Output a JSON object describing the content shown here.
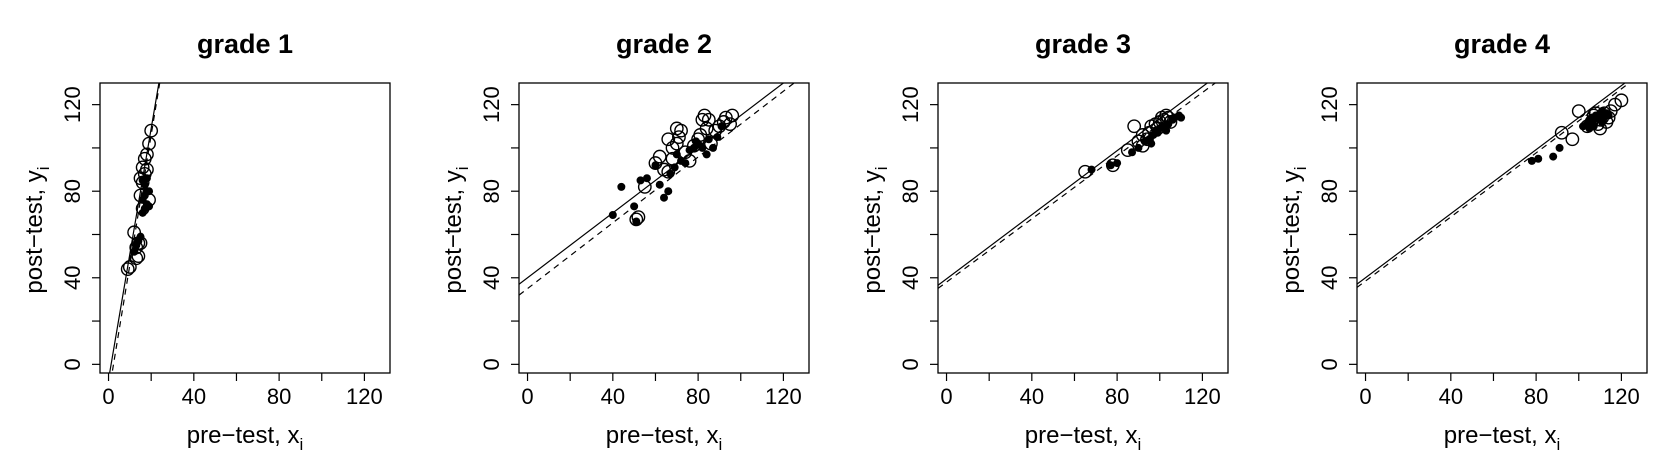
{
  "chart_data": [
    {
      "type": "scatter",
      "title": "grade 1",
      "xlabel": "pre−test, x",
      "xlabel_sub": "i",
      "ylabel": "post−test, y",
      "ylabel_sub": "i",
      "xlim": [
        -4,
        132
      ],
      "ylim": [
        -4,
        130
      ],
      "xticks": [
        "0",
        "40",
        "80",
        "120"
      ],
      "yticks": [
        "0",
        "40",
        "80",
        "120"
      ],
      "lines": [
        {
          "style": "solid",
          "intercept": -7,
          "slope": 5.8
        },
        {
          "style": "dashed",
          "intercept": -14,
          "slope": 6.0
        }
      ],
      "series": [
        {
          "marker": "open",
          "points": [
            [
              9,
              44
            ],
            [
              10,
              45
            ],
            [
              12,
              61
            ],
            [
              13,
              49
            ],
            [
              14,
              50
            ],
            [
              13,
              54
            ],
            [
              14,
              56
            ],
            [
              15,
              78
            ],
            [
              16,
              84
            ],
            [
              15,
              86
            ],
            [
              17,
              88
            ],
            [
              16,
              91
            ],
            [
              17,
              95
            ],
            [
              18,
              97
            ],
            [
              19,
              102
            ],
            [
              20,
              108
            ],
            [
              18,
              90
            ],
            [
              16,
              72
            ],
            [
              19,
              76
            ],
            [
              15,
              56
            ]
          ]
        },
        {
          "marker": "filled",
          "points": [
            [
              12,
              52
            ],
            [
              13,
              55
            ],
            [
              14,
              57
            ],
            [
              15,
              59
            ],
            [
              16,
              70
            ],
            [
              17,
              72
            ],
            [
              18,
              74
            ],
            [
              16,
              76
            ],
            [
              17,
              78
            ],
            [
              18,
              80
            ],
            [
              19,
              80
            ],
            [
              17,
              83
            ],
            [
              16,
              85
            ],
            [
              18,
              86
            ],
            [
              19,
              73
            ]
          ]
        }
      ]
    },
    {
      "type": "scatter",
      "title": "grade 2",
      "xlabel": "pre−test, x",
      "xlabel_sub": "i",
      "ylabel": "post−test, y",
      "ylabel_sub": "i",
      "xlim": [
        -4,
        132
      ],
      "ylim": [
        -4,
        130
      ],
      "xticks": [
        "0",
        "40",
        "80",
        "120"
      ],
      "yticks": [
        "0",
        "40",
        "80",
        "120"
      ],
      "lines": [
        {
          "style": "solid",
          "intercept": 40,
          "slope": 0.75
        },
        {
          "style": "dashed",
          "intercept": 35,
          "slope": 0.76
        }
      ],
      "series": [
        {
          "marker": "open",
          "points": [
            [
              51,
              67
            ],
            [
              52,
              68
            ],
            [
              55,
              82
            ],
            [
              60,
              93
            ],
            [
              62,
              96
            ],
            [
              64,
              90
            ],
            [
              66,
              89
            ],
            [
              68,
              95
            ],
            [
              68,
              100
            ],
            [
              70,
              102
            ],
            [
              70,
              109
            ],
            [
              71,
              105
            ],
            [
              72,
              108
            ],
            [
              74,
              98
            ],
            [
              76,
              94
            ],
            [
              78,
              101
            ],
            [
              80,
              104
            ],
            [
              81,
              106
            ],
            [
              82,
              113
            ],
            [
              83,
              115
            ],
            [
              85,
              113
            ],
            [
              84,
              109
            ],
            [
              86,
              102
            ],
            [
              90,
              110
            ],
            [
              92,
              112
            ],
            [
              93,
              114
            ],
            [
              95,
              111
            ],
            [
              96,
              115
            ],
            [
              88,
              108
            ],
            [
              66,
              104
            ]
          ]
        },
        {
          "marker": "filled",
          "points": [
            [
              40,
              69
            ],
            [
              44,
              82
            ],
            [
              50,
              73
            ],
            [
              51,
              66
            ],
            [
              53,
              85
            ],
            [
              56,
              86
            ],
            [
              60,
              92
            ],
            [
              62,
              83
            ],
            [
              64,
              77
            ],
            [
              66,
              80
            ],
            [
              67,
              88
            ],
            [
              69,
              91
            ],
            [
              72,
              94
            ],
            [
              74,
              93
            ],
            [
              76,
              99
            ],
            [
              78,
              100
            ],
            [
              79,
              103
            ],
            [
              82,
              100
            ],
            [
              84,
              97
            ],
            [
              85,
              104
            ],
            [
              87,
              100
            ],
            [
              89,
              105
            ],
            [
              91,
              110
            ],
            [
              70,
              97
            ],
            [
              80,
              102
            ]
          ]
        }
      ]
    },
    {
      "type": "scatter",
      "title": "grade 3",
      "xlabel": "pre−test, x",
      "xlabel_sub": "i",
      "ylabel": "post−test, y",
      "ylabel_sub": "i",
      "xlim": [
        -4,
        132
      ],
      "ylim": [
        -4,
        130
      ],
      "xticks": [
        "0",
        "40",
        "80",
        "120"
      ],
      "yticks": [
        "0",
        "40",
        "80",
        "120"
      ],
      "lines": [
        {
          "style": "solid",
          "intercept": 39.5,
          "slope": 0.74
        },
        {
          "style": "dashed",
          "intercept": 38,
          "slope": 0.73
        }
      ],
      "series": [
        {
          "marker": "open",
          "points": [
            [
              65,
              89
            ],
            [
              78,
              92
            ],
            [
              85,
              99
            ],
            [
              88,
              110
            ],
            [
              90,
              103
            ],
            [
              92,
              106
            ],
            [
              94,
              104
            ],
            [
              95,
              107
            ],
            [
              96,
              110
            ],
            [
              98,
              111
            ],
            [
              100,
              112
            ],
            [
              101,
              114
            ],
            [
              102,
              113
            ],
            [
              103,
              115
            ],
            [
              104,
              114
            ],
            [
              105,
              112
            ],
            [
              99,
              109
            ],
            [
              92,
              101
            ]
          ]
        },
        {
          "marker": "filled",
          "points": [
            [
              68,
              90
            ],
            [
              77,
              92
            ],
            [
              80,
              93
            ],
            [
              87,
              98
            ],
            [
              90,
              100
            ],
            [
              93,
              103
            ],
            [
              95,
              104
            ],
            [
              97,
              106
            ],
            [
              98,
              108
            ],
            [
              99,
              107
            ],
            [
              100,
              109
            ],
            [
              102,
              110
            ],
            [
              103,
              108
            ],
            [
              104,
              111
            ],
            [
              106,
              113
            ],
            [
              107,
              114
            ],
            [
              109,
              115
            ],
            [
              110,
              114
            ],
            [
              96,
              102
            ]
          ]
        }
      ]
    },
    {
      "type": "scatter",
      "title": "grade 4",
      "xlabel": "pre−test, x",
      "xlabel_sub": "i",
      "ylabel": "post−test, y",
      "ylabel_sub": "i",
      "xlim": [
        -4,
        132
      ],
      "ylim": [
        -4,
        130
      ],
      "xticks": [
        "0",
        "40",
        "80",
        "120"
      ],
      "yticks": [
        "0",
        "40",
        "80",
        "120"
      ],
      "lines": [
        {
          "style": "solid",
          "intercept": 40,
          "slope": 0.74
        },
        {
          "style": "dashed",
          "intercept": 38.5,
          "slope": 0.74
        }
      ],
      "series": [
        {
          "marker": "open",
          "points": [
            [
              92,
              107
            ],
            [
              97,
              104
            ],
            [
              100,
              117
            ],
            [
              104,
              110
            ],
            [
              106,
              112
            ],
            [
              107,
              115
            ],
            [
              108,
              116
            ],
            [
              109,
              111
            ],
            [
              110,
              113
            ],
            [
              111,
              114
            ],
            [
              112,
              116
            ],
            [
              113,
              112
            ],
            [
              114,
              114
            ],
            [
              115,
              117
            ],
            [
              117,
              120
            ],
            [
              120,
              122
            ],
            [
              110,
              109
            ],
            [
              108,
              113
            ]
          ]
        },
        {
          "marker": "filled",
          "points": [
            [
              78,
              94
            ],
            [
              81,
              95
            ],
            [
              88,
              96
            ],
            [
              91,
              100
            ],
            [
              102,
              110
            ],
            [
              104,
              111
            ],
            [
              105,
              113
            ],
            [
              106,
              114
            ],
            [
              107,
              113
            ],
            [
              108,
              115
            ],
            [
              109,
              114
            ],
            [
              110,
              116
            ],
            [
              111,
              117
            ],
            [
              112,
              115
            ],
            [
              113,
              116
            ],
            [
              114,
              115
            ],
            [
              107,
              110
            ],
            [
              105,
              109
            ],
            [
              111,
              112
            ]
          ]
        }
      ]
    }
  ]
}
